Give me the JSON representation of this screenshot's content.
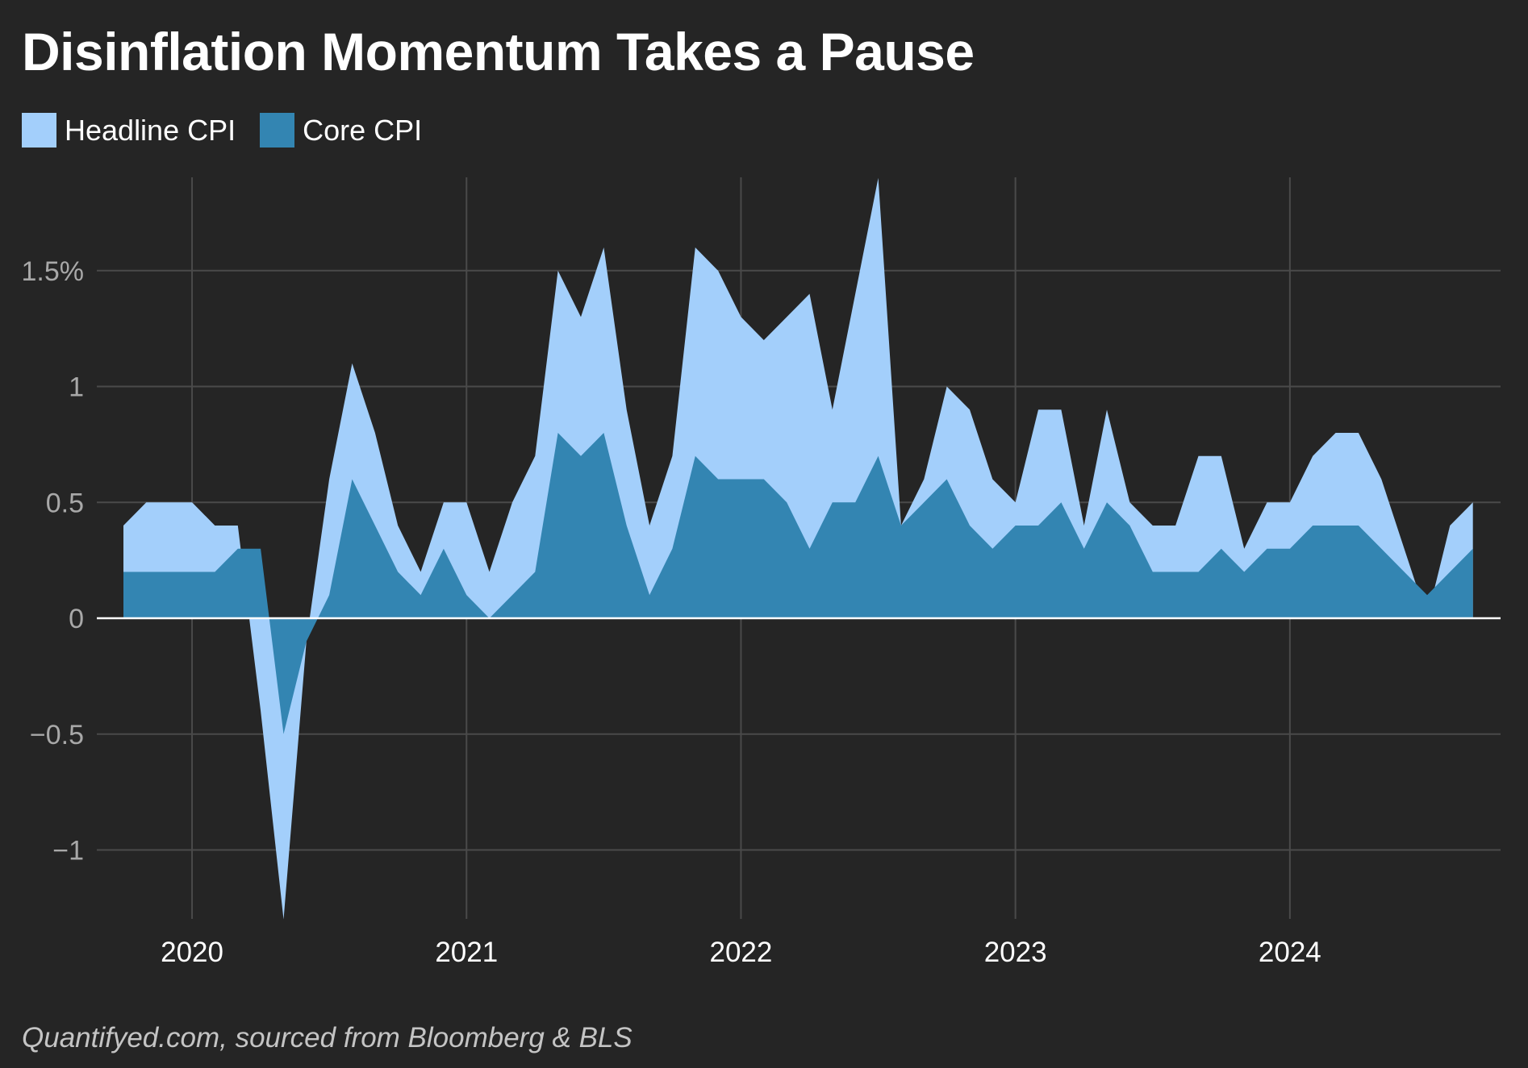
{
  "title": "Disinflation Momentum Takes a Pause",
  "source": "Quantifyed.com, sourced from Bloomberg & BLS",
  "colors": {
    "background": "#252525",
    "headline": "#a3cffb",
    "core": "#3385b2",
    "grid": "#4a4a4a",
    "zero_line": "#ffffff",
    "tick_y": "#a8a8a8",
    "tick_x": "#ffffff"
  },
  "chart_data": {
    "type": "area",
    "title": "Disinflation Momentum Takes a Pause",
    "xlabel": "",
    "ylabel": "",
    "ylim": [
      -1.3,
      1.9
    ],
    "xlim": [
      "2019-10",
      "2024-09"
    ],
    "grid": true,
    "legend_placement": "top-left",
    "y_ticks": [
      {
        "value": 1.5,
        "label": "1.5%"
      },
      {
        "value": 1,
        "label": "1"
      },
      {
        "value": 0.5,
        "label": "0.5"
      },
      {
        "value": 0,
        "label": "0"
      },
      {
        "value": -0.5,
        "label": "−0.5"
      },
      {
        "value": -1,
        "label": "−1"
      }
    ],
    "x_ticks": [
      {
        "value": "2020-01",
        "label": "2020"
      },
      {
        "value": "2021-01",
        "label": "2021"
      },
      {
        "value": "2022-01",
        "label": "2022"
      },
      {
        "value": "2023-01",
        "label": "2023"
      },
      {
        "value": "2024-01",
        "label": "2024"
      }
    ],
    "x": [
      "2019-10",
      "2019-11",
      "2019-12",
      "2020-01",
      "2020-02",
      "2020-03",
      "2020-04",
      "2020-05",
      "2020-06",
      "2020-07",
      "2020-08",
      "2020-09",
      "2020-10",
      "2020-11",
      "2020-12",
      "2021-01",
      "2021-02",
      "2021-03",
      "2021-04",
      "2021-05",
      "2021-06",
      "2021-07",
      "2021-08",
      "2021-09",
      "2021-10",
      "2021-11",
      "2021-12",
      "2022-01",
      "2022-02",
      "2022-03",
      "2022-04",
      "2022-05",
      "2022-06",
      "2022-07",
      "2022-08",
      "2022-09",
      "2022-10",
      "2022-11",
      "2022-12",
      "2023-01",
      "2023-02",
      "2023-03",
      "2023-04",
      "2023-05",
      "2023-06",
      "2023-07",
      "2023-08",
      "2023-09",
      "2023-10",
      "2023-11",
      "2023-12",
      "2024-01",
      "2024-02",
      "2024-03",
      "2024-04",
      "2024-05",
      "2024-06",
      "2024-07",
      "2024-08",
      "2024-09"
    ],
    "series": [
      {
        "name": "Headline CPI",
        "color": "#a3cffb",
        "values": [
          0.4,
          0.5,
          0.5,
          0.5,
          0.4,
          0.4,
          -0.4,
          -1.3,
          -0.1,
          0.6,
          1.1,
          0.8,
          0.4,
          0.2,
          0.5,
          0.5,
          0.2,
          0.5,
          0.7,
          1.5,
          1.3,
          1.6,
          0.9,
          0.4,
          0.7,
          1.6,
          1.5,
          1.3,
          1.2,
          1.3,
          1.4,
          0.9,
          1.4,
          1.9,
          0.4,
          0.6,
          1.0,
          0.9,
          0.6,
          0.5,
          0.9,
          0.9,
          0.4,
          0.9,
          0.5,
          0.4,
          0.4,
          0.7,
          0.7,
          0.3,
          0.5,
          0.5,
          0.7,
          0.8,
          0.8,
          0.6,
          0.3,
          0.0,
          0.4,
          0.5
        ]
      },
      {
        "name": "Core CPI",
        "color": "#3385b2",
        "values": [
          0.2,
          0.2,
          0.2,
          0.2,
          0.2,
          0.3,
          0.3,
          -0.5,
          -0.1,
          0.1,
          0.6,
          0.4,
          0.2,
          0.1,
          0.3,
          0.1,
          0.0,
          0.1,
          0.2,
          0.8,
          0.7,
          0.8,
          0.4,
          0.1,
          0.3,
          0.7,
          0.6,
          0.6,
          0.6,
          0.5,
          0.3,
          0.5,
          0.5,
          0.7,
          0.4,
          0.5,
          0.6,
          0.4,
          0.3,
          0.4,
          0.4,
          0.5,
          0.3,
          0.5,
          0.4,
          0.2,
          0.2,
          0.2,
          0.3,
          0.2,
          0.3,
          0.3,
          0.4,
          0.4,
          0.4,
          0.3,
          0.2,
          0.1,
          0.2,
          0.3
        ]
      }
    ]
  }
}
